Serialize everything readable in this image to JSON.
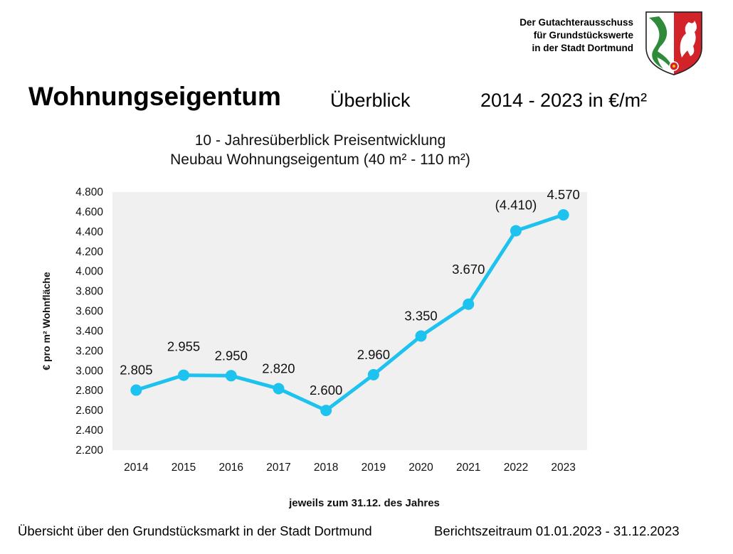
{
  "header": {
    "org_line1": "Der Gutachterausschuss",
    "org_line2": "für Grundstückswerte",
    "org_line3": "in der Stadt Dortmund",
    "title": "Wohnungseigentum",
    "subtitle": "Überblick",
    "range": "2014 - 2023 in €/m²"
  },
  "crest": {
    "icon": "nrw-coat-of-arms-icon",
    "colors": [
      "#d2232a",
      "#2e8b3a",
      "#ffffff"
    ]
  },
  "chart_data": {
    "type": "line",
    "title": "10 - Jahresüberblick Preisentwicklung",
    "subtitle": "Neubau Wohnungseigentum (40 m² - 110 m²)",
    "xlabel": "jeweils zum 31.12. des Jahres",
    "ylabel": "€ pro m² Wohnfläche",
    "categories": [
      "2014",
      "2015",
      "2016",
      "2017",
      "2018",
      "2019",
      "2020",
      "2021",
      "2022",
      "2023"
    ],
    "series": [
      {
        "values": [
          2805,
          2955,
          2950,
          2820,
          2600,
          2960,
          3350,
          3670,
          4410,
          4570
        ],
        "color": "#1ec2ee"
      }
    ],
    "data_labels": [
      "2.805",
      "2.955",
      "2.950",
      "2.820",
      "2.600",
      "2.960",
      "3.350",
      "3.670",
      "(4.410)",
      "4.570"
    ],
    "ylim": [
      2200,
      4800
    ],
    "yticks": [
      2200,
      2400,
      2600,
      2800,
      3000,
      3200,
      3400,
      3600,
      3800,
      4000,
      4200,
      4400,
      4600,
      4800
    ],
    "ytick_labels": [
      "2.200",
      "2.400",
      "2.600",
      "2.800",
      "3.000",
      "3.200",
      "3.400",
      "3.600",
      "3.800",
      "4.000",
      "4.200",
      "4.400",
      "4.600",
      "4.800"
    ],
    "plot_background": "#f0f0f0",
    "grid": false,
    "legend": "none"
  },
  "footer": {
    "left": "Übersicht über den Grundstücksmarkt in der Stadt Dortmund",
    "right": "Berichtszeitraum 01.01.2023 - 31.12.2023"
  }
}
